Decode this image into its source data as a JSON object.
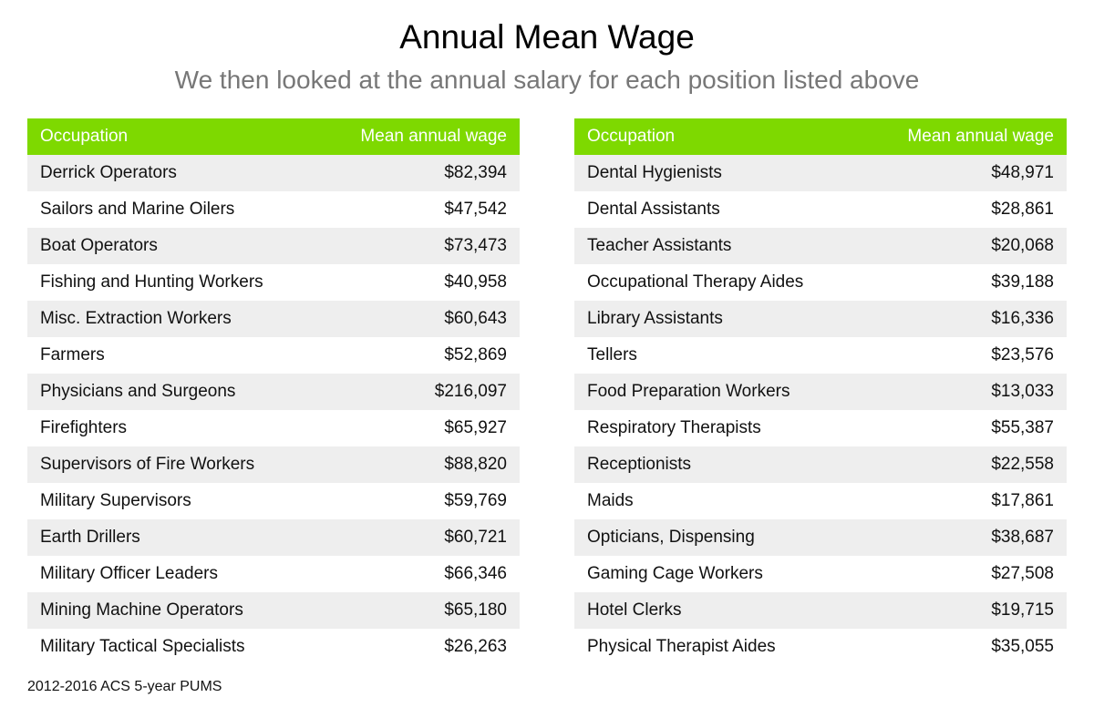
{
  "title": "Annual Mean Wage",
  "subtitle": "We then looked at the annual salary for each position listed above",
  "colors": {
    "header": "#7ed900",
    "stripe": "#eeeeee"
  },
  "tables": [
    {
      "headers": [
        "Occupation",
        "Mean annual wage"
      ],
      "rows": [
        [
          "Derrick Operators",
          "$82,394"
        ],
        [
          "Sailors and Marine Oilers",
          "$47,542"
        ],
        [
          "Boat Operators",
          "$73,473"
        ],
        [
          "Fishing and Hunting Workers",
          "$40,958"
        ],
        [
          "Misc. Extraction Workers",
          "$60,643"
        ],
        [
          "Farmers",
          "$52,869"
        ],
        [
          "Physicians and Surgeons",
          "$216,097"
        ],
        [
          "Firefighters",
          "$65,927"
        ],
        [
          "Supervisors of Fire Workers",
          "$88,820"
        ],
        [
          "Military Supervisors",
          "$59,769"
        ],
        [
          "Earth Drillers",
          "$60,721"
        ],
        [
          "Military Officer Leaders",
          "$66,346"
        ],
        [
          "Mining Machine Operators",
          "$65,180"
        ],
        [
          "Military Tactical Specialists",
          "$26,263"
        ]
      ]
    },
    {
      "headers": [
        "Occupation",
        "Mean annual wage"
      ],
      "rows": [
        [
          "Dental Hygienists",
          "$48,971"
        ],
        [
          "Dental Assistants",
          "$28,861"
        ],
        [
          "Teacher Assistants",
          "$20,068"
        ],
        [
          "Occupational Therapy Aides",
          "$39,188"
        ],
        [
          "Library Assistants",
          "$16,336"
        ],
        [
          "Tellers",
          "$23,576"
        ],
        [
          "Food Preparation Workers",
          "$13,033"
        ],
        [
          "Respiratory Therapists",
          "$55,387"
        ],
        [
          "Receptionists",
          "$22,558"
        ],
        [
          "Maids",
          "$17,861"
        ],
        [
          "Opticians, Dispensing",
          "$38,687"
        ],
        [
          "Gaming Cage Workers",
          "$27,508"
        ],
        [
          "Hotel Clerks",
          "$19,715"
        ],
        [
          "Physical Therapist Aides",
          "$35,055"
        ]
      ]
    }
  ],
  "footer": "2012-2016 ACS 5-year PUMS"
}
